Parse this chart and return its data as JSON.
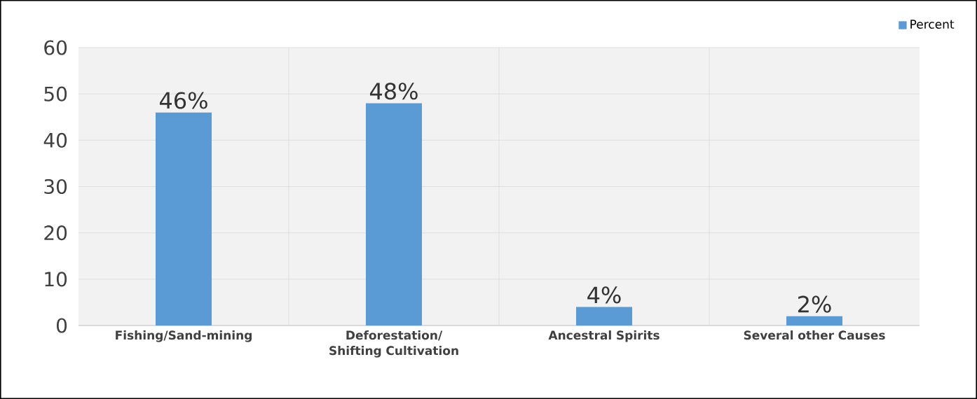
{
  "chart_data": {
    "type": "bar",
    "categories": [
      "Fishing/Sand-mining",
      "Deforestation/ Shifting Cultivation",
      "Ancestral Spirits",
      "Several other Causes"
    ],
    "series": [
      {
        "name": "Percent",
        "color": "#5b9bd5",
        "values": [
          46,
          48,
          4,
          2
        ],
        "value_labels": [
          "46%",
          "48%",
          "4%",
          "2%"
        ]
      }
    ],
    "ylim": [
      0,
      60
    ],
    "yticks": [
      0,
      10,
      20,
      30,
      40,
      50,
      60
    ],
    "grid": true,
    "legend": "top right"
  }
}
